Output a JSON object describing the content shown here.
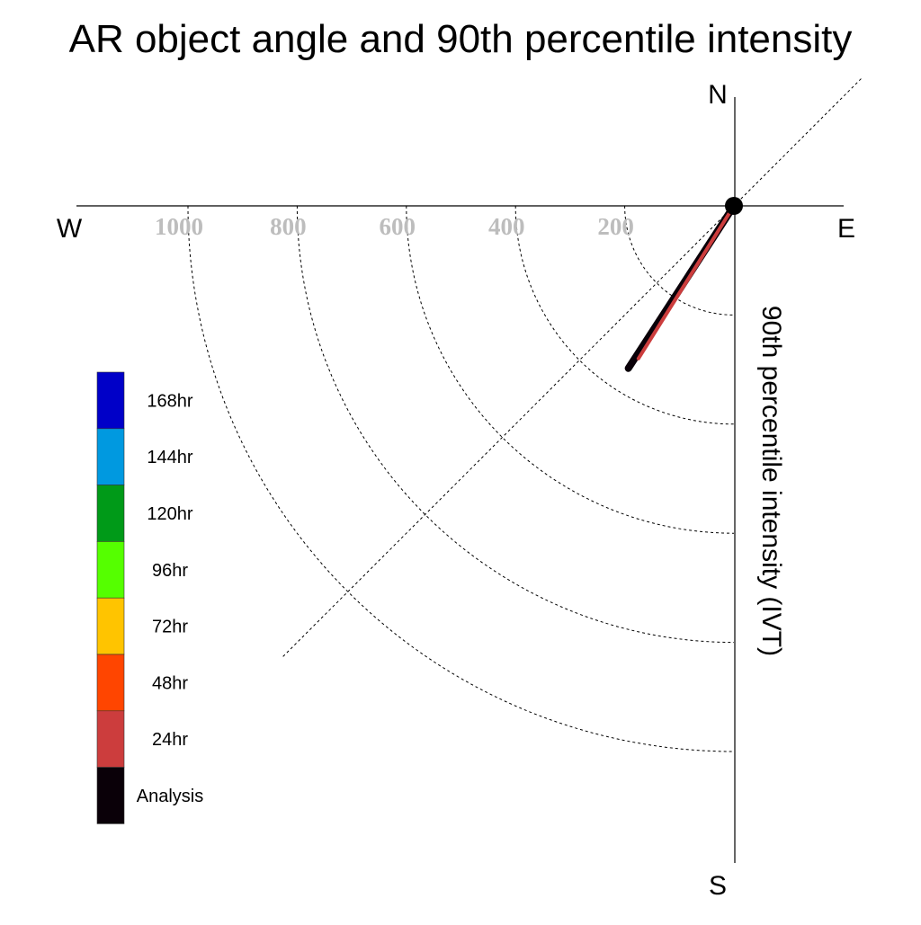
{
  "chart_data": {
    "type": "polar-vector",
    "title": "AR object angle and 90th percentile intensity",
    "radial_label": "90th percentile intensity (IVT)",
    "radial_unit": "IVT",
    "r_ticks": [
      200,
      400,
      600,
      800,
      1000
    ],
    "r_tick_labels": [
      "200",
      "400",
      "600",
      "800",
      "1000"
    ],
    "r_max": 1000,
    "compass": {
      "north": "N",
      "east": "E",
      "south": "S",
      "west": "W"
    },
    "diagonal_reference_deg": 45,
    "grid": true,
    "legend_position": "left",
    "legend": [
      {
        "label": "168hr",
        "color": "#0000c8"
      },
      {
        "label": "144hr",
        "color": "#0099e0"
      },
      {
        "label": "120hr",
        "color": "#009a18"
      },
      {
        "label": "96hr",
        "color": "#55ff00"
      },
      {
        "label": "72hr",
        "color": "#ffc400"
      },
      {
        "label": "48hr",
        "color": "#ff4500"
      },
      {
        "label": "24hr",
        "color": "#cc3d3d"
      },
      {
        "label": "Analysis",
        "color": "#0a0008"
      }
    ],
    "series": [
      {
        "name": "24hr",
        "color": "#cc3d3d",
        "direction_deg": 212,
        "intensity": 330
      },
      {
        "name": "Analysis",
        "color": "#0a0008",
        "direction_deg": 213,
        "intensity": 355
      }
    ]
  }
}
